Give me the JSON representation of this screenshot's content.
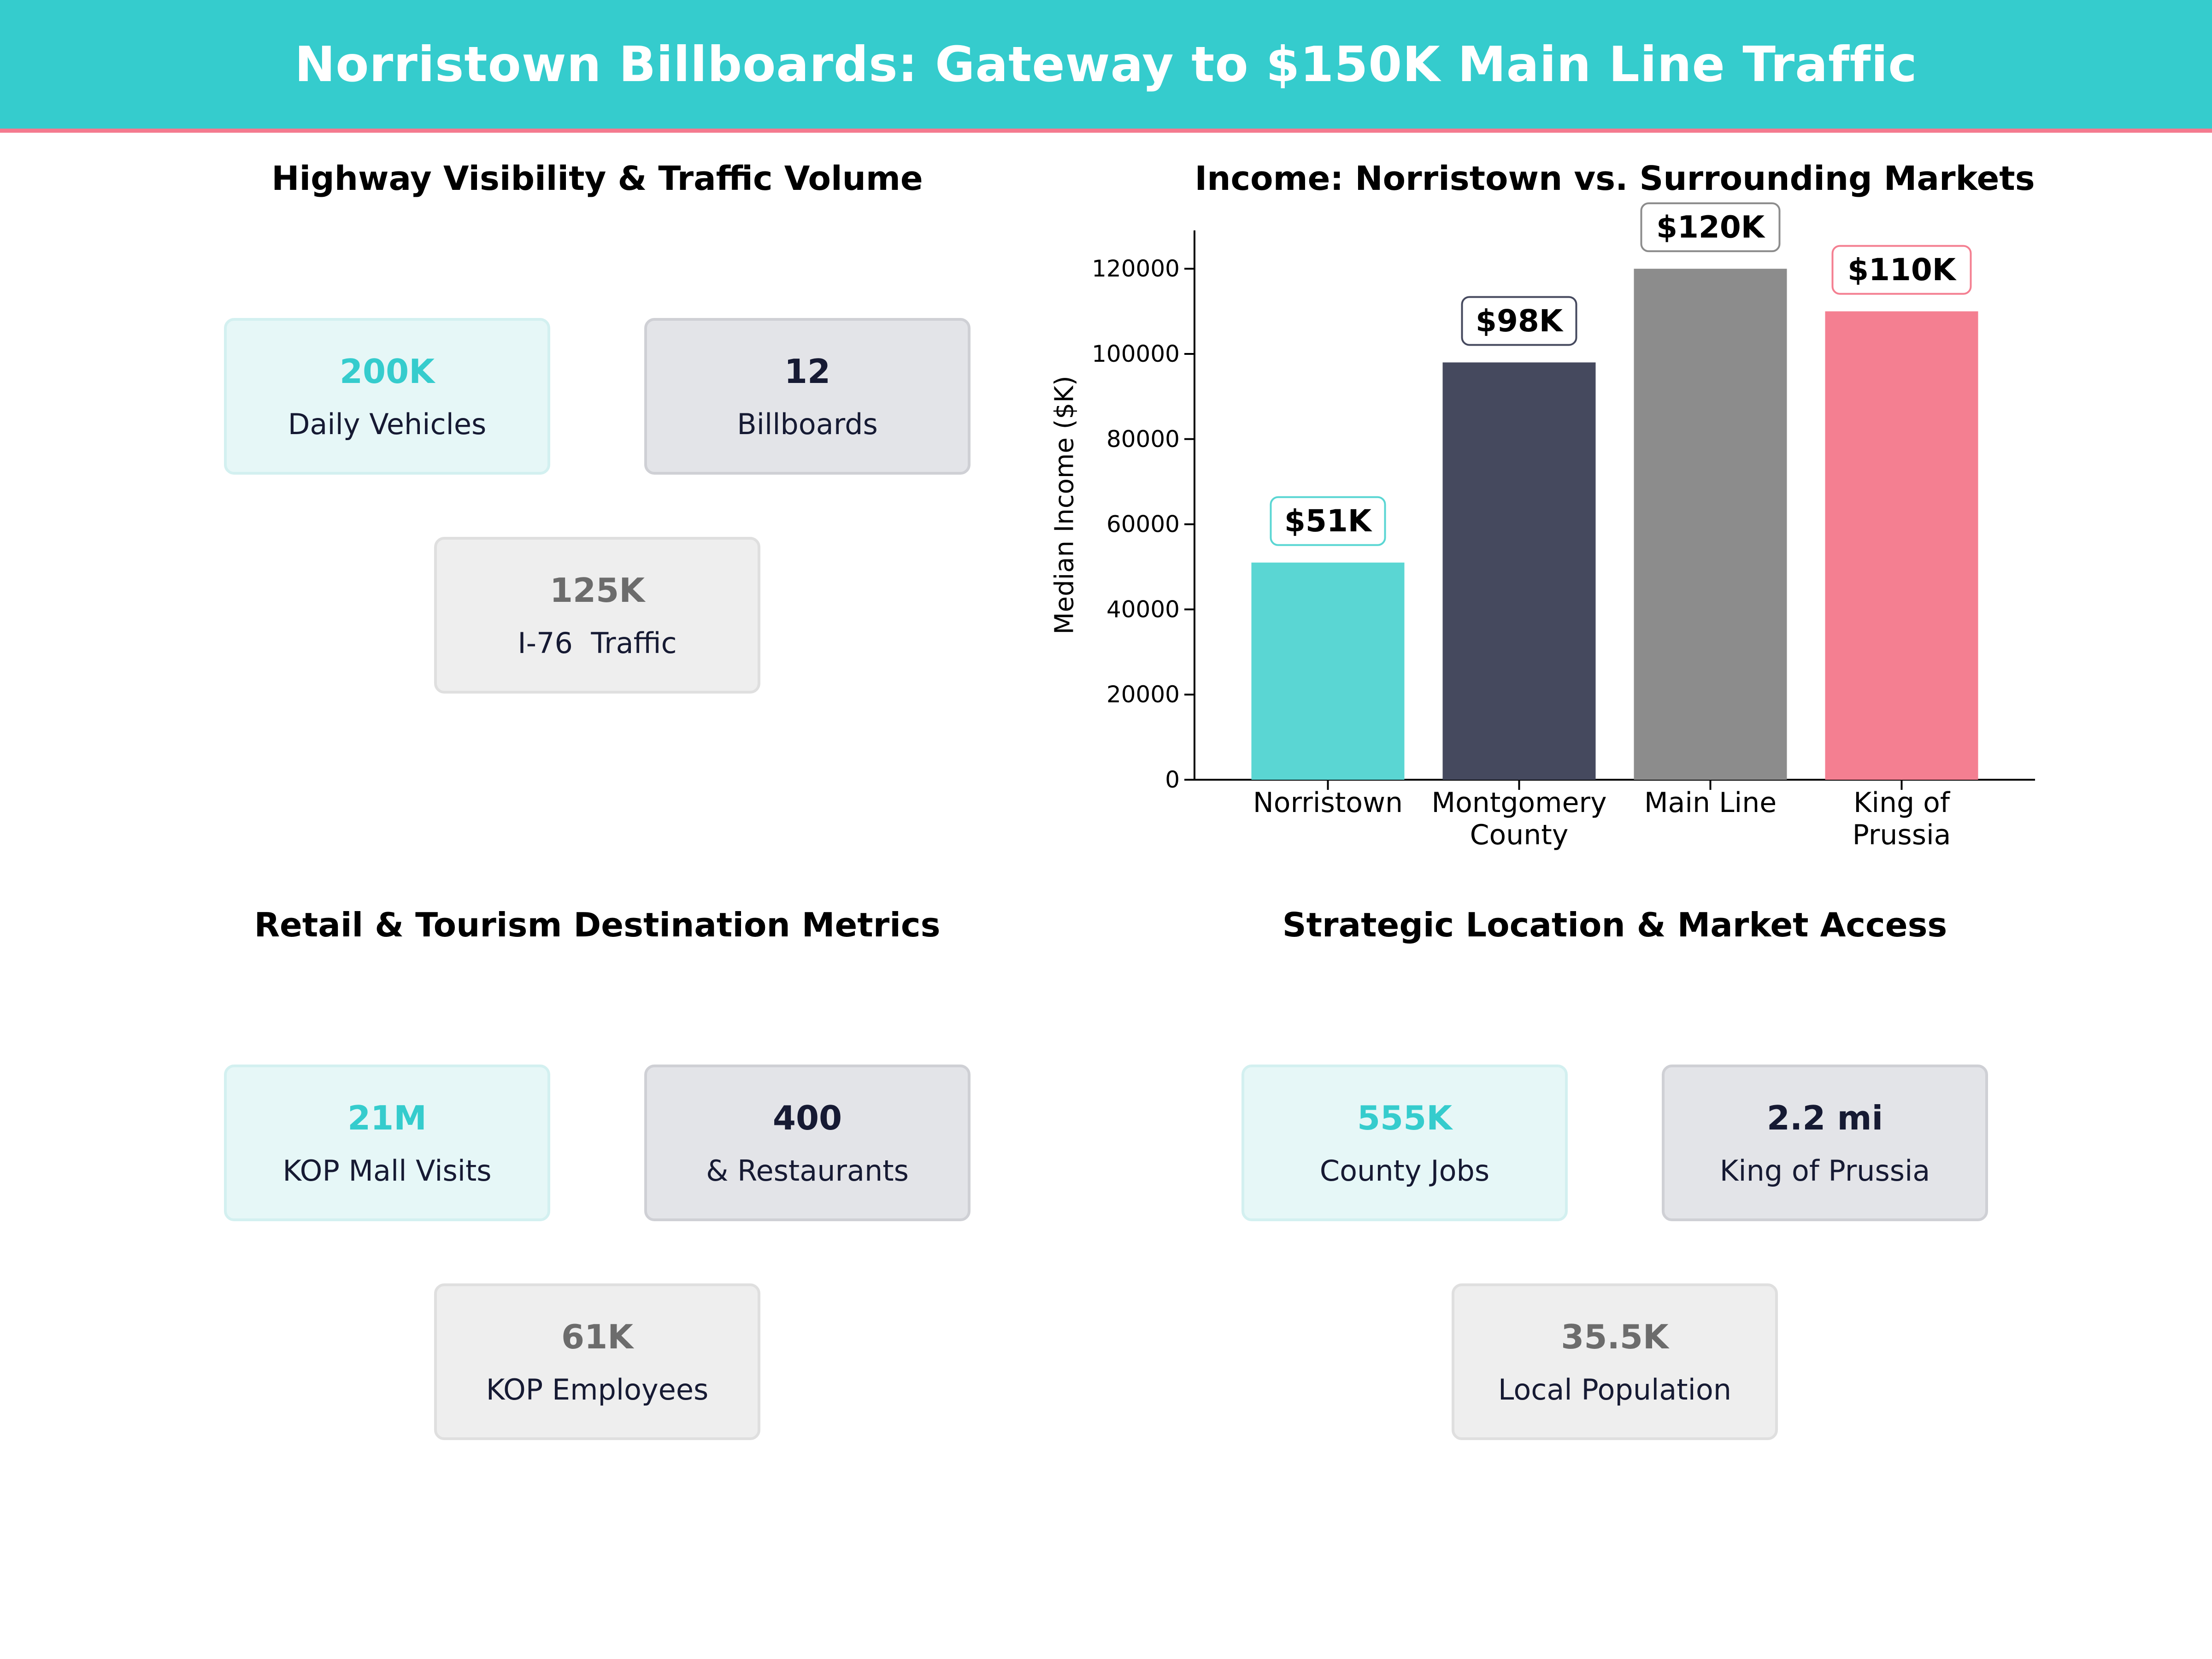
{
  "header": {
    "title": "Norristown Billboards: Gateway to $150K Main Line Traffic"
  },
  "panels": {
    "highway": {
      "title": "Highway Visibility & Traffic Volume",
      "cards": [
        {
          "value": "200K",
          "label": "Daily Vehicles"
        },
        {
          "value": "12",
          "label": "Billboards"
        },
        {
          "value": "125K",
          "label": "I-76  Traffic"
        }
      ]
    },
    "income": {
      "title": "Income: Norristown vs. Surrounding Markets"
    },
    "retail": {
      "title": "Retail & Tourism Destination Metrics",
      "cards": [
        {
          "value": "21M",
          "label": "KOP Mall Visits"
        },
        {
          "value": "400",
          "label": "& Restaurants"
        },
        {
          "value": "61K",
          "label": "KOP Employees"
        }
      ]
    },
    "location": {
      "title": "Strategic Location & Market Access",
      "cards": [
        {
          "value": "555K",
          "label": "County Jobs"
        },
        {
          "value": "2.2 mi",
          "label": "King of Prussia"
        },
        {
          "value": "35.5K",
          "label": "Local Population"
        }
      ]
    }
  },
  "chart_data": {
    "type": "bar",
    "title": "Income: Norristown vs. Surrounding Markets",
    "xlabel": "",
    "ylabel": "Median Income ($K)",
    "categories": [
      "Norristown",
      "Montgomery County",
      "Main Line",
      "King of Prussia"
    ],
    "category_lines": [
      [
        "Norristown"
      ],
      [
        "Montgomery",
        "County"
      ],
      [
        "Main Line"
      ],
      [
        "King of",
        "Prussia"
      ]
    ],
    "values": [
      51000,
      98000,
      120000,
      110000
    ],
    "data_labels": [
      "$51K",
      "$98K",
      "$120K",
      "$110K"
    ],
    "colors": [
      "#5ad6d3",
      "#45495e",
      "#8c8c8c",
      "#f47f91"
    ],
    "label_border_colors": [
      "#5ad6d3",
      "#45495e",
      "#8c8c8c",
      "#f47f91"
    ],
    "yticks": [
      0,
      20000,
      40000,
      60000,
      80000,
      100000,
      120000
    ],
    "ylim": [
      0,
      129000
    ],
    "grid": false
  }
}
